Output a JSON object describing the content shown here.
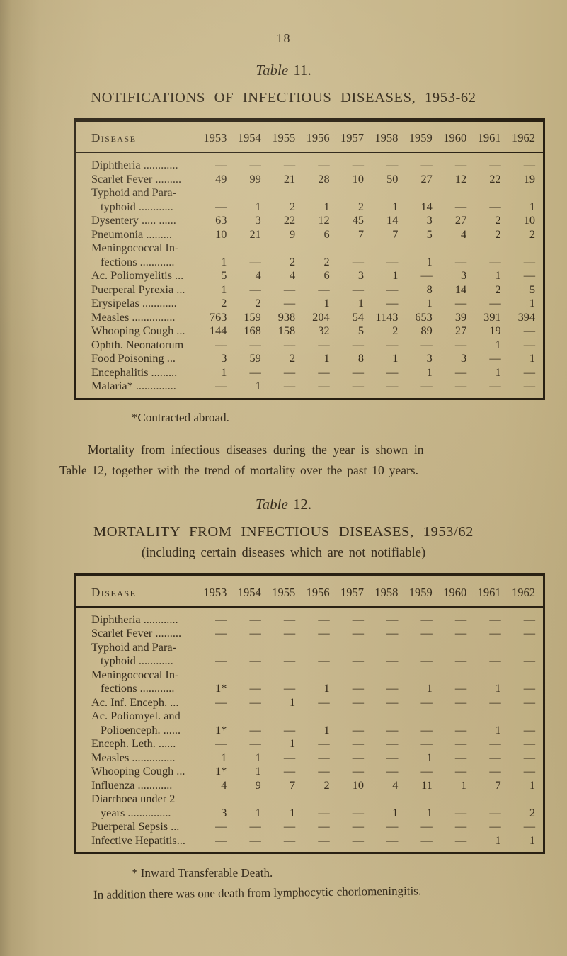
{
  "page": {
    "number": "18"
  },
  "colors": {
    "paper": "#c9b88c",
    "ink": "#362c1d",
    "border": "#271f12"
  },
  "table11": {
    "caption_word": "Table",
    "caption_num": "11.",
    "title": "NOTIFICATIONS OF INFECTIOUS DISEASES, 1953-62",
    "col_header": "Disease",
    "years": [
      "1953",
      "1954",
      "1955",
      "1956",
      "1957",
      "1958",
      "1959",
      "1960",
      "1961",
      "1962"
    ],
    "rows": [
      {
        "lines": [
          "Diphtheria ............"
        ],
        "values": [
          "—",
          "—",
          "—",
          "—",
          "—",
          "—",
          "—",
          "—",
          "—",
          "—"
        ]
      },
      {
        "lines": [
          "Scarlet Fever ........."
        ],
        "values": [
          "49",
          "99",
          "21",
          "28",
          "10",
          "50",
          "27",
          "12",
          "22",
          "19"
        ]
      },
      {
        "lines": [
          "Typhoid and Para-",
          "typhoid ............"
        ],
        "values": [
          "—",
          "1",
          "2",
          "1",
          "2",
          "1",
          "14",
          "—",
          "—",
          "1"
        ]
      },
      {
        "lines": [
          "Dysentery ..... ......"
        ],
        "values": [
          "63",
          "3",
          "22",
          "12",
          "45",
          "14",
          "3",
          "27",
          "2",
          "10"
        ]
      },
      {
        "lines": [
          "Pneumonia ........."
        ],
        "values": [
          "10",
          "21",
          "9",
          "6",
          "7",
          "7",
          "5",
          "4",
          "2",
          "2"
        ]
      },
      {
        "lines": [
          "Meningococcal In-",
          "fections ............"
        ],
        "values": [
          "1",
          "—",
          "2",
          "2",
          "—",
          "—",
          "1",
          "—",
          "—",
          "—"
        ]
      },
      {
        "lines": [
          "Ac. Poliomyelitis ..."
        ],
        "values": [
          "5",
          "4",
          "4",
          "6",
          "3",
          "1",
          "—",
          "3",
          "1",
          "—"
        ]
      },
      {
        "lines": [
          "Puerperal Pyrexia ..."
        ],
        "values": [
          "1",
          "—",
          "—",
          "—",
          "—",
          "—",
          "8",
          "14",
          "2",
          "5"
        ]
      },
      {
        "lines": [
          "Erysipelas ............"
        ],
        "values": [
          "2",
          "2",
          "—",
          "1",
          "1",
          "—",
          "1",
          "—",
          "—",
          "1"
        ]
      },
      {
        "lines": [
          "Measles ..............."
        ],
        "values": [
          "763",
          "159",
          "938",
          "204",
          "54",
          "1143",
          "653",
          "39",
          "391",
          "394"
        ]
      },
      {
        "lines": [
          "Whooping Cough ..."
        ],
        "values": [
          "144",
          "168",
          "158",
          "32",
          "5",
          "2",
          "89",
          "27",
          "19",
          "—"
        ]
      },
      {
        "lines": [
          "Ophth. Neonatorum"
        ],
        "values": [
          "—",
          "—",
          "—",
          "—",
          "—",
          "—",
          "—",
          "—",
          "1",
          "—"
        ]
      },
      {
        "lines": [
          "Food Poisoning   ..."
        ],
        "values": [
          "3",
          "59",
          "2",
          "1",
          "8",
          "1",
          "3",
          "3",
          "—",
          "1"
        ]
      },
      {
        "lines": [
          "Encephalitis ........."
        ],
        "values": [
          "1",
          "—",
          "—",
          "—",
          "—",
          "—",
          "1",
          "—",
          "1",
          "—"
        ]
      },
      {
        "lines": [
          "Malaria* .............."
        ],
        "values": [
          "—",
          "1",
          "—",
          "—",
          "—",
          "—",
          "—",
          "—",
          "—",
          "—"
        ]
      }
    ],
    "footnote": "*Contracted abroad."
  },
  "paragraph": {
    "line1": "Mortality from infectious diseases during the year is shown in",
    "line2": "Table 12, together with the trend of mortality over the past 10 years."
  },
  "table12": {
    "caption_word": "Table",
    "caption_num": "12.",
    "title": "MORTALITY FROM INFECTIOUS DISEASES, 1953/62",
    "subtitle": "(including certain diseases which are not notifiable)",
    "col_header": "Disease",
    "years": [
      "1953",
      "1954",
      "1955",
      "1956",
      "1957",
      "1958",
      "1959",
      "1960",
      "1961",
      "1962"
    ],
    "rows": [
      {
        "lines": [
          "Diphtheria ............"
        ],
        "values": [
          "—",
          "—",
          "—",
          "—",
          "—",
          "—",
          "—",
          "—",
          "—",
          "—"
        ]
      },
      {
        "lines": [
          "Scarlet Fever ........."
        ],
        "values": [
          "—",
          "—",
          "—",
          "—",
          "—",
          "—",
          "—",
          "—",
          "—",
          "—"
        ]
      },
      {
        "lines": [
          "Typhoid and Para-",
          "typhoid ............"
        ],
        "values": [
          "—",
          "—",
          "—",
          "—",
          "—",
          "—",
          "—",
          "—",
          "—",
          "—"
        ]
      },
      {
        "lines": [
          "Meningococcal In-",
          "fections ............"
        ],
        "values": [
          "1*",
          "—",
          "—",
          "1",
          "—",
          "—",
          "1",
          "—",
          "1",
          "—"
        ]
      },
      {
        "lines": [
          "Ac. Inf. Enceph. ..."
        ],
        "values": [
          "—",
          "—",
          "1",
          "—",
          "—",
          "—",
          "—",
          "—",
          "—",
          "—"
        ]
      },
      {
        "lines": [
          "Ac. Poliomyel. and",
          "Polioenceph. ......"
        ],
        "values": [
          "1*",
          "—",
          "—",
          "1",
          "—",
          "—",
          "—",
          "—",
          "1",
          "—"
        ]
      },
      {
        "lines": [
          "Enceph. Leth. ......"
        ],
        "values": [
          "—",
          "—",
          "1",
          "—",
          "—",
          "—",
          "—",
          "—",
          "—",
          "—"
        ]
      },
      {
        "lines": [
          "Measles ..............."
        ],
        "values": [
          "1",
          "1",
          "—",
          "—",
          "—",
          "—",
          "1",
          "—",
          "—",
          "—"
        ]
      },
      {
        "lines": [
          "Whooping Cough ..."
        ],
        "values": [
          "1*",
          "1",
          "—",
          "—",
          "—",
          "—",
          "—",
          "—",
          "—",
          "—"
        ]
      },
      {
        "lines": [
          "Influenza ............"
        ],
        "values": [
          "4",
          "9",
          "7",
          "2",
          "10",
          "4",
          "11",
          "1",
          "7",
          "1"
        ]
      },
      {
        "lines": [
          "Diarrhoea under 2",
          "years ..............."
        ],
        "values": [
          "3",
          "1",
          "1",
          "—",
          "—",
          "1",
          "1",
          "—",
          "—",
          "2"
        ]
      },
      {
        "lines": [
          "Puerperal Sepsis   ..."
        ],
        "values": [
          "—",
          "—",
          "—",
          "—",
          "—",
          "—",
          "—",
          "—",
          "—",
          "—"
        ]
      },
      {
        "lines": [
          "Infective Hepatitis..."
        ],
        "values": [
          "—",
          "—",
          "—",
          "—",
          "—",
          "—",
          "—",
          "—",
          "1",
          "1"
        ]
      }
    ],
    "footnote_star": "* Inward Transferable Death.",
    "footnote_note": "In addition there was one death from lymphocytic choriomeningitis."
  }
}
